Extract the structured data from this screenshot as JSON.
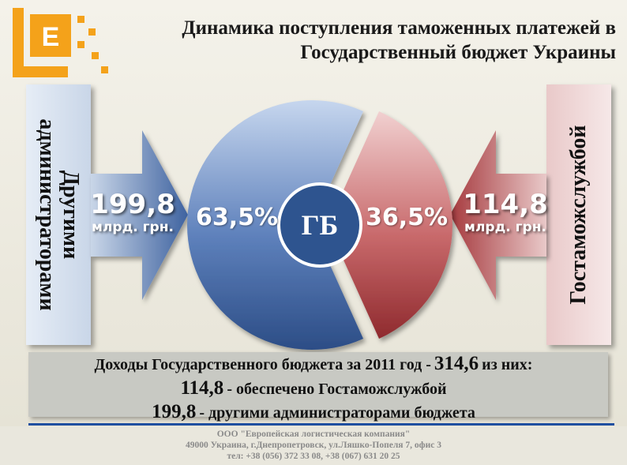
{
  "title": {
    "line1": "Динамика поступления таможенных платежей в",
    "line2": "Государственный бюджет Украины"
  },
  "logo": {
    "letter": "E",
    "color": "#f4a21a"
  },
  "left_panel": {
    "line1": "Другими",
    "line2": "администраторами"
  },
  "right_panel": {
    "label": "Гостаможслужбой"
  },
  "left_arrow": {
    "value": "199,8",
    "unit": "млрд. грн."
  },
  "right_arrow": {
    "value": "114,8",
    "unit": "млрд. грн."
  },
  "center_label": "ГБ",
  "chart_data": {
    "type": "pie",
    "center_label": "ГБ",
    "slices": [
      {
        "label": "63,5%",
        "value": 63.5,
        "amount": 199.8,
        "color": "#3f63a0"
      },
      {
        "label": "36,5%",
        "value": 36.5,
        "amount": 114.8,
        "color": "#b5484b"
      }
    ]
  },
  "summary": {
    "line1_text": "Доходы Государственного бюджета за 2011 год -",
    "line1_value": "314,6",
    "line1_suffix": "из них:",
    "line2_value": "114,8",
    "line2_text": "- обеспечено Гостаможслужбой",
    "line3_value": "199,8",
    "line3_text": "- другими администраторами бюджета"
  },
  "footer": {
    "company": "ООО \"Европейская логистическая компания\"",
    "address": "49000 Украина, г.Днепропетровск, ул.Ляшко-Попеля 7, офис 3",
    "phone": "тел: +38 (056) 372 33 08, +38 (067) 631 20 25"
  },
  "colors": {
    "blue": "#3f63a0",
    "red": "#b5484b",
    "divider": "#1f4fa0"
  }
}
